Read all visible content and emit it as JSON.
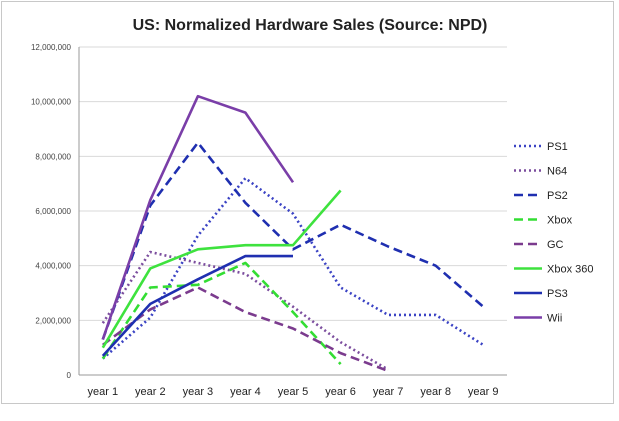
{
  "chart_data": {
    "type": "line",
    "title": "US: Normalized Hardware Sales (Source: NPD)",
    "xlabel": "",
    "ylabel": "",
    "categories": [
      "year 1",
      "year 2",
      "year 3",
      "year 4",
      "year 5",
      "year 6",
      "year 7",
      "year 8",
      "year 9"
    ],
    "ylim": [
      0,
      12000000
    ],
    "yticks": [
      0,
      2000000,
      4000000,
      6000000,
      8000000,
      10000000,
      12000000
    ],
    "ytick_labels": [
      "0",
      "2,000,000",
      "4,000,000",
      "6,000,000",
      "8,000,000",
      "10,000,000",
      "12,000,000"
    ],
    "grid": true,
    "legend_position": "right",
    "series": [
      {
        "name": "PS1",
        "color": "#3b43c4",
        "dash": "dotted",
        "values": [
          600000,
          2100000,
          5100000,
          7200000,
          5900000,
          3200000,
          2200000,
          2200000,
          1100000
        ]
      },
      {
        "name": "N64",
        "color": "#7b4d9e",
        "dash": "dotted",
        "values": [
          1900000,
          4500000,
          4100000,
          3700000,
          2500000,
          1200000,
          200000,
          null,
          null
        ]
      },
      {
        "name": "PS2",
        "color": "#1f2fb0",
        "dash": "dashed",
        "values": [
          1300000,
          6200000,
          8500000,
          6300000,
          4600000,
          5500000,
          4700000,
          4000000,
          2500000
        ]
      },
      {
        "name": "Xbox",
        "color": "#33dd33",
        "dash": "dashed",
        "values": [
          600000,
          3200000,
          3300000,
          4100000,
          2300000,
          400000,
          null,
          null,
          null
        ]
      },
      {
        "name": "GC",
        "color": "#7b3b8e",
        "dash": "dashed",
        "values": [
          1100000,
          2400000,
          3200000,
          2300000,
          1700000,
          800000,
          150000,
          null,
          null
        ]
      },
      {
        "name": "Xbox 360",
        "color": "#3ee23e",
        "dash": "solid",
        "values": [
          1000000,
          3900000,
          4600000,
          4750000,
          4750000,
          6750000,
          null,
          null,
          null
        ]
      },
      {
        "name": "PS3",
        "color": "#1f2fb0",
        "dash": "solid",
        "values": [
          700000,
          2600000,
          3500000,
          4350000,
          4350000,
          null,
          null,
          null,
          null
        ]
      },
      {
        "name": "Wii",
        "color": "#7a3ea8",
        "dash": "solid",
        "values": [
          1300000,
          6400000,
          10200000,
          9600000,
          7050000,
          null,
          null,
          null,
          null
        ]
      }
    ]
  }
}
